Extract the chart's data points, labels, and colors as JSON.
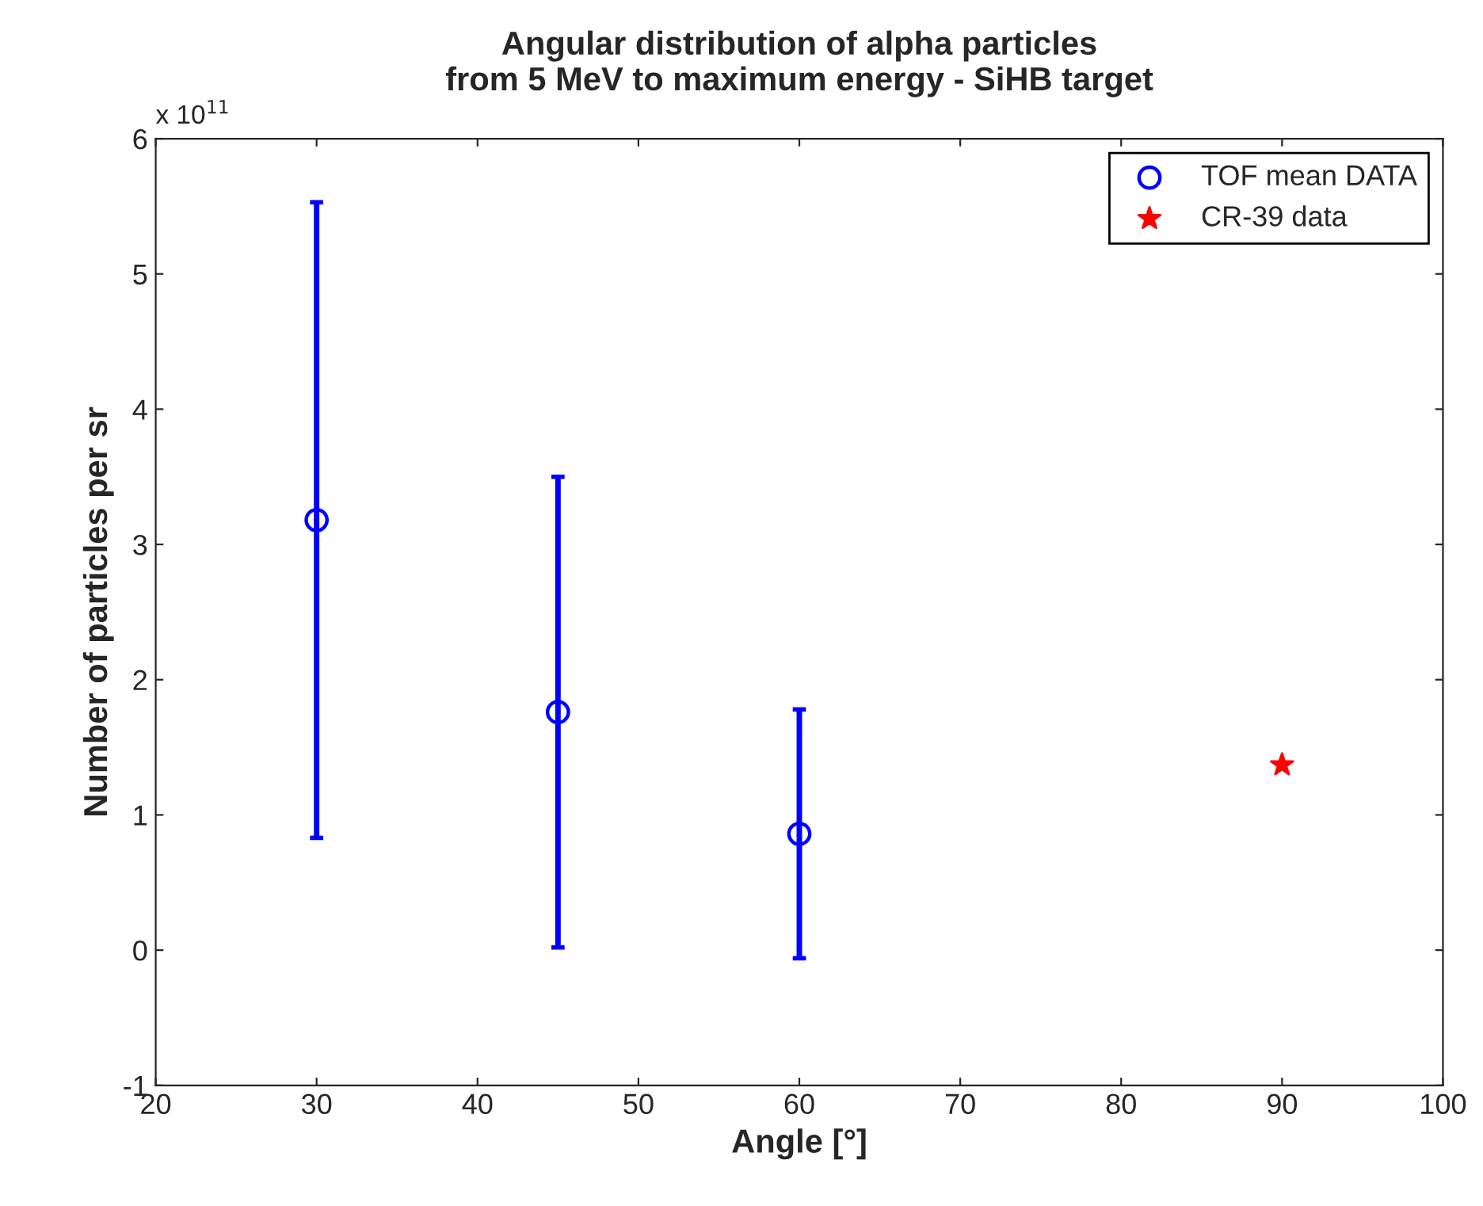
{
  "chart_data": {
    "type": "scatter",
    "title": "Angular distribution of alpha particles\nfrom 5 MeV to maximum energy - SiHB target",
    "xlabel": "Angle [°]",
    "ylabel": "Number of particles per sr",
    "annotations": [
      "x 10$^{11}$"
    ],
    "series": [
      {
        "name": "TOF mean DATA",
        "color": "#0000ff",
        "marker": "circle",
        "x": [
          30,
          45,
          60
        ],
        "values": [
          3.18,
          1.76,
          0.86
        ],
        "errors": [
          2.35,
          1.74,
          0.92
        ]
      },
      {
        "name": "CR-39 data",
        "color": "#ff0000",
        "marker": "star",
        "x": [
          90
        ],
        "values": [
          1.37
        ]
      }
    ],
    "xlim": [
      20,
      100
    ],
    "xticks": [
      20,
      30,
      40,
      50,
      60,
      70,
      80,
      90,
      100
    ],
    "ylim": [
      -1,
      6
    ],
    "yticks": [
      -1,
      0,
      1,
      2,
      3,
      4,
      5,
      6
    ],
    "grid": false,
    "legend": "top right"
  }
}
